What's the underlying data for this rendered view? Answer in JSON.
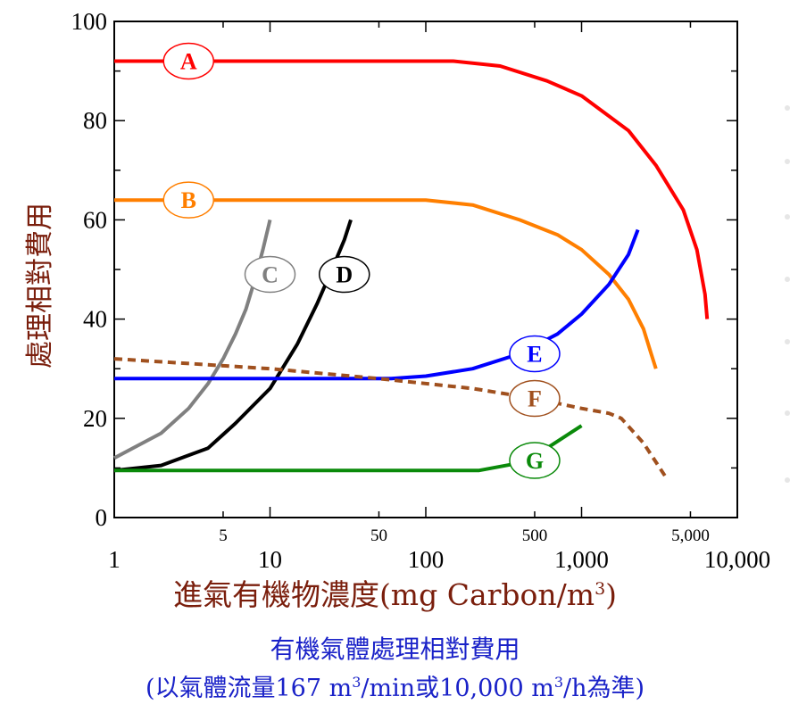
{
  "chart_data": {
    "type": "line",
    "x_scale": "log",
    "xlim": [
      1,
      10000
    ],
    "ylim": [
      0,
      100
    ],
    "x_major_ticks": [
      {
        "value": 1,
        "label": "1"
      },
      {
        "value": 10,
        "label": "10"
      },
      {
        "value": 100,
        "label": "100"
      },
      {
        "value": 1000,
        "label": "1,000"
      },
      {
        "value": 10000,
        "label": "10,000"
      }
    ],
    "x_minor_ticks": [
      {
        "value": 5,
        "label": "5"
      },
      {
        "value": 50,
        "label": "50"
      },
      {
        "value": 500,
        "label": "500"
      },
      {
        "value": 5000,
        "label": "5,000"
      }
    ],
    "y_ticks": [
      0,
      20,
      40,
      60,
      80,
      100
    ],
    "grid": false,
    "series": [
      {
        "name": "A",
        "color": "#ff0000",
        "dashed": false,
        "x": [
          1,
          100,
          150,
          300,
          600,
          1000,
          2000,
          3000,
          4500,
          5500,
          6200,
          6400
        ],
        "y": [
          92,
          92,
          92,
          91,
          88,
          85,
          78,
          71,
          62,
          54,
          45,
          40
        ]
      },
      {
        "name": "B",
        "color": "#ff7f00",
        "dashed": false,
        "x": [
          1,
          70,
          100,
          200,
          400,
          700,
          1000,
          1500,
          2000,
          2500,
          2800,
          3000
        ],
        "y": [
          64,
          64,
          64,
          63,
          60,
          57,
          54,
          49,
          44,
          38,
          33,
          30
        ]
      },
      {
        "name": "C",
        "color": "#808080",
        "dashed": false,
        "x": [
          1,
          2,
          3,
          4,
          5,
          6,
          7,
          8,
          9,
          10
        ],
        "y": [
          12,
          17,
          22,
          27,
          32,
          37,
          42,
          48,
          54,
          60
        ]
      },
      {
        "name": "D",
        "color": "#000000",
        "dashed": false,
        "x": [
          1,
          2,
          4,
          6,
          10,
          15,
          20,
          25,
          30,
          33
        ],
        "y": [
          9.5,
          10.5,
          14,
          19,
          26,
          35,
          43,
          50,
          56,
          60
        ]
      },
      {
        "name": "E",
        "color": "#0000ff",
        "dashed": false,
        "x": [
          1,
          30,
          60,
          100,
          200,
          400,
          700,
          1000,
          1500,
          2000,
          2300
        ],
        "y": [
          28,
          28,
          28,
          28.5,
          30,
          33,
          37,
          41,
          47,
          53,
          58
        ]
      },
      {
        "name": "F",
        "color": "#a0501e",
        "dashed": true,
        "x": [
          1,
          10,
          50,
          200,
          500,
          1000,
          1500,
          1800,
          2500,
          3500
        ],
        "y": [
          32,
          30,
          28,
          26,
          24,
          22,
          21,
          20,
          15,
          8
        ]
      },
      {
        "name": "G",
        "color": "#0a8a0a",
        "dashed": false,
        "x": [
          1,
          50,
          100,
          200,
          220,
          400,
          600,
          1000
        ],
        "y": [
          9.5,
          9.5,
          9.5,
          9.5,
          9.5,
          11,
          14,
          18.5
        ]
      }
    ],
    "series_labels": [
      {
        "text": "A",
        "x": 3,
        "y": 92
      },
      {
        "text": "B",
        "x": 3,
        "y": 64
      },
      {
        "text": "C",
        "x": 10,
        "y": 49
      },
      {
        "text": "D",
        "x": 30,
        "y": 49
      },
      {
        "text": "E",
        "x": 500,
        "y": 33
      },
      {
        "text": "F",
        "x": 500,
        "y": 24
      },
      {
        "text": "G",
        "x": 500,
        "y": 11.5
      }
    ],
    "ylabel": "處理相對費用",
    "xlabel": "進氣有機物濃度(mg Carbon/m",
    "xlabel_sup": "3",
    "xlabel_end": ")"
  },
  "caption": {
    "line1": "有機氣體處理相對費用",
    "line2_a": "(以氣體流量167 m",
    "line2_sup1": "3",
    "line2_b": "/min或10,000 m",
    "line2_sup2": "3",
    "line2_c": "/h為準)"
  }
}
